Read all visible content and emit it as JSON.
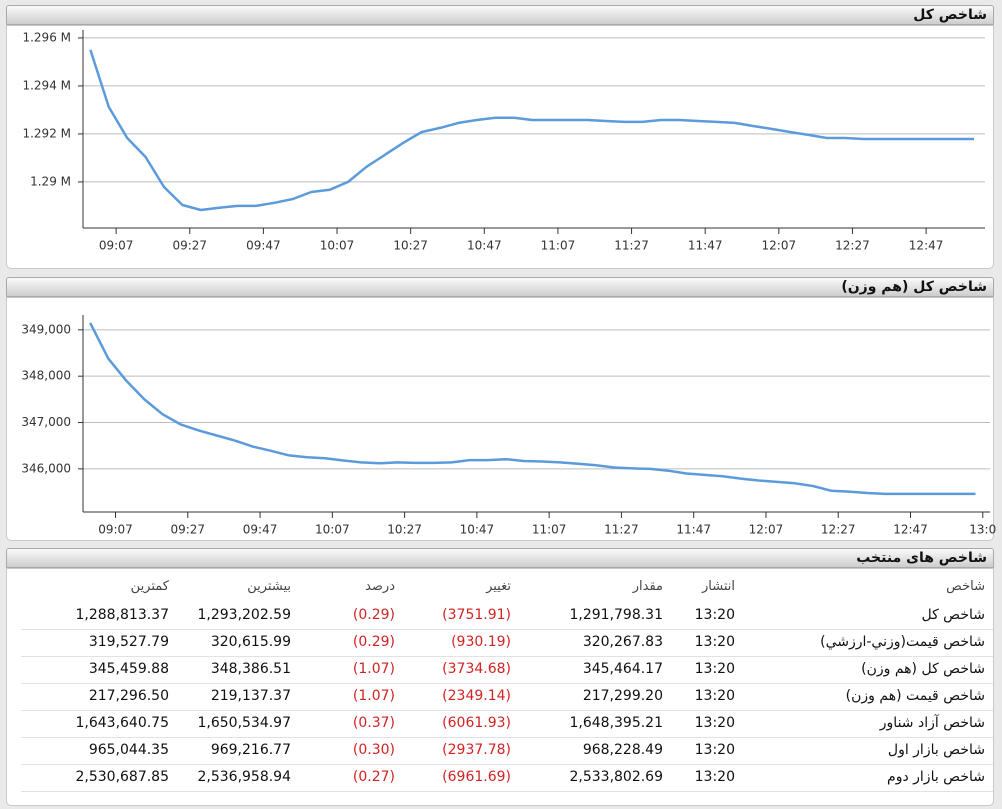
{
  "chart_data": [
    {
      "type": "line",
      "title": "شاخص کل",
      "x": [
        540,
        545,
        550,
        555,
        560,
        565,
        570,
        575,
        580,
        585,
        590,
        595,
        600,
        605,
        610,
        615,
        620,
        625,
        630,
        635,
        640,
        645,
        650,
        655,
        660,
        665,
        670,
        675,
        680,
        685,
        690,
        695,
        700,
        705,
        710,
        715,
        720,
        725,
        730,
        735,
        740,
        745,
        750,
        755,
        760,
        765,
        770,
        775,
        780
      ],
      "values": [
        1.2955,
        1.29312,
        1.29183,
        1.29104,
        1.28979,
        1.28904,
        1.28883,
        1.28892,
        1.289,
        1.289,
        1.28913,
        1.28929,
        1.28958,
        1.28967,
        1.29,
        1.29063,
        1.29113,
        1.29163,
        1.29208,
        1.29225,
        1.29246,
        1.29258,
        1.29267,
        1.29267,
        1.29258,
        1.29258,
        1.29258,
        1.29258,
        1.29254,
        1.2925,
        1.2925,
        1.29258,
        1.29258,
        1.29254,
        1.2925,
        1.29246,
        1.29233,
        1.29221,
        1.29208,
        1.29196,
        1.29183,
        1.29183,
        1.29179,
        1.29179,
        1.29179,
        1.29179,
        1.29179,
        1.29179,
        1.29179
      ],
      "color": "#5b9bdc",
      "xlim": [
        538,
        783
      ],
      "xticks": [
        {
          "value": 547,
          "label": "09:07"
        },
        {
          "value": 567,
          "label": "09:27"
        },
        {
          "value": 587,
          "label": "09:47"
        },
        {
          "value": 607,
          "label": "10:07"
        },
        {
          "value": 627,
          "label": "10:27"
        },
        {
          "value": 647,
          "label": "10:47"
        },
        {
          "value": 667,
          "label": "11:07"
        },
        {
          "value": 687,
          "label": "11:27"
        },
        {
          "value": 707,
          "label": "11:47"
        },
        {
          "value": 727,
          "label": "12:07"
        },
        {
          "value": 747,
          "label": "12:27"
        },
        {
          "value": 767,
          "label": "12:47"
        }
      ],
      "ylim": [
        1.28808,
        1.29633
      ],
      "yticks": [
        {
          "value": 1.29,
          "label": "1.29 M"
        },
        {
          "value": 1.292,
          "label": "1.292 M"
        },
        {
          "value": 1.294,
          "label": "1.294 M"
        },
        {
          "value": 1.296,
          "label": "1.296 M"
        }
      ],
      "grid": true
    },
    {
      "type": "line",
      "title": "شاخص کل (هم وزن)",
      "x": [
        540,
        545,
        550,
        555,
        560,
        565,
        570,
        575,
        580,
        585,
        590,
        595,
        600,
        605,
        610,
        615,
        620,
        625,
        630,
        635,
        640,
        645,
        650,
        655,
        660,
        665,
        670,
        675,
        680,
        685,
        690,
        695,
        700,
        705,
        710,
        715,
        720,
        725,
        730,
        735,
        740,
        745,
        750,
        755,
        760,
        765,
        770,
        775,
        780,
        785
      ],
      "values": [
        349150,
        348380,
        347900,
        347500,
        347180,
        346960,
        346830,
        346720,
        346610,
        346480,
        346390,
        346290,
        346250,
        346230,
        346180,
        346140,
        346120,
        346140,
        346130,
        346130,
        346140,
        346190,
        346190,
        346210,
        346170,
        346160,
        346140,
        346110,
        346080,
        346030,
        346010,
        346000,
        345960,
        345900,
        345870,
        345840,
        345790,
        345750,
        345720,
        345690,
        345630,
        345530,
        345510,
        345480,
        345460,
        345460,
        345460,
        345460,
        345460,
        345460
      ],
      "color": "#5b9bdc",
      "xlim": [
        538,
        789
      ],
      "xticks": [
        {
          "value": 547,
          "label": "09:07"
        },
        {
          "value": 567,
          "label": "09:27"
        },
        {
          "value": 587,
          "label": "09:47"
        },
        {
          "value": 607,
          "label": "10:07"
        },
        {
          "value": 627,
          "label": "10:27"
        },
        {
          "value": 647,
          "label": "10:47"
        },
        {
          "value": 667,
          "label": "11:07"
        },
        {
          "value": 687,
          "label": "11:27"
        },
        {
          "value": 707,
          "label": "11:47"
        },
        {
          "value": 727,
          "label": "12:07"
        },
        {
          "value": 747,
          "label": "12:27"
        },
        {
          "value": 767,
          "label": "12:47"
        },
        {
          "value": 787,
          "label": "13:0"
        }
      ],
      "ylim": [
        345070,
        349320
      ],
      "yticks": [
        {
          "value": 346000,
          "label": "346,000"
        },
        {
          "value": 347000,
          "label": "347,000"
        },
        {
          "value": 348000,
          "label": "348,000"
        },
        {
          "value": 349000,
          "label": "349,000"
        }
      ],
      "grid": true
    }
  ],
  "table": {
    "title": "شاخص های منتخب",
    "header": [
      "شاخص",
      "انتشار",
      "مقدار",
      "تغییر",
      "درصد",
      "بیشترین",
      "کمترین"
    ],
    "rows": [
      [
        "شاخص کل",
        "13:20",
        "1,291,798.31",
        "(3751.91)",
        "(0.29)",
        "1,293,202.59",
        "1,288,813.37"
      ],
      [
        "شاخص قیمت(وزني-ارزشي)",
        "13:20",
        "320,267.83",
        "(930.19)",
        "(0.29)",
        "320,615.99",
        "319,527.79"
      ],
      [
        "شاخص کل (هم وزن)",
        "13:20",
        "345,464.17",
        "(3734.68)",
        "(1.07)",
        "348,386.51",
        "345,459.88"
      ],
      [
        "شاخص قیمت (هم وزن)",
        "13:20",
        "217,299.20",
        "(2349.14)",
        "(1.07)",
        "219,137.37",
        "217,296.50"
      ],
      [
        "شاخص آزاد شناور",
        "13:20",
        "1,648,395.21",
        "(6061.93)",
        "(0.37)",
        "1,650,534.97",
        "1,643,640.75"
      ],
      [
        "شاخص بازار اول",
        "13:20",
        "968,228.49",
        "(2937.78)",
        "(0.30)",
        "969,216.77",
        "965,044.35"
      ],
      [
        "شاخص بازار دوم",
        "13:20",
        "2,533,802.69",
        "(6961.69)",
        "(0.27)",
        "2,536,958.94",
        "2,530,687.85"
      ]
    ]
  }
}
